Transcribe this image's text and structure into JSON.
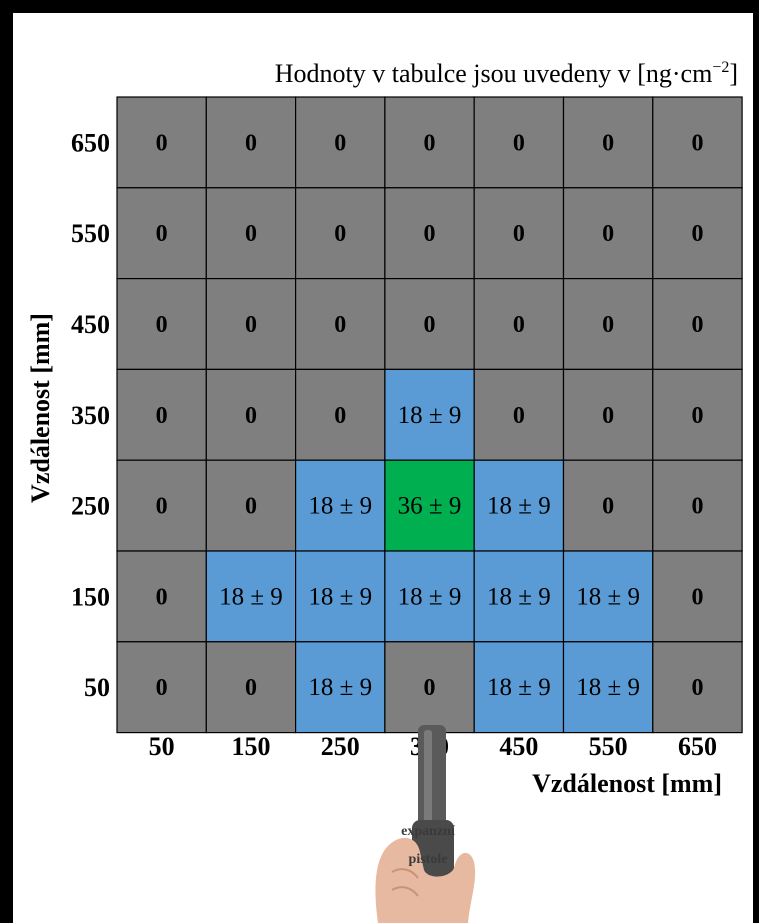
{
  "chart_data": {
    "type": "heatmap",
    "title": "Hodnoty v tabulce jsou uvedeny v [ng·cm",
    "title_sup": "−2",
    "title_end": "]",
    "xlabel": "Vzdálenost [mm]",
    "ylabel": "Vzdálenost [mm]",
    "x_ticks": [
      "50",
      "150",
      "250",
      "350",
      "450",
      "550",
      "650"
    ],
    "y_ticks": [
      "650",
      "550",
      "450",
      "350",
      "250",
      "150",
      "50"
    ],
    "cells": [
      [
        "0",
        "0",
        "0",
        "0",
        "0",
        "0",
        "0"
      ],
      [
        "0",
        "0",
        "0",
        "0",
        "0",
        "0",
        "0"
      ],
      [
        "0",
        "0",
        "0",
        "0",
        "0",
        "0",
        "0"
      ],
      [
        "0",
        "0",
        "0",
        "18 ± 9",
        "0",
        "0",
        "0"
      ],
      [
        "0",
        "0",
        "18 ± 9",
        "36 ± 9",
        "18 ± 9",
        "0",
        "0"
      ],
      [
        "0",
        "18 ± 9",
        "18 ± 9",
        "18 ± 9",
        "18 ± 9",
        "18 ± 9",
        "0"
      ],
      [
        "0",
        "0",
        "18 ± 9",
        "0",
        "18 ± 9",
        "18 ± 9",
        "0"
      ]
    ],
    "colors": {
      "zero": "#7f7f7f",
      "18": "#5b9bd5",
      "36": "#00b050",
      "grid": "#000000"
    }
  },
  "annotation": {
    "line1": "expanzní",
    "line2": "pistole"
  }
}
